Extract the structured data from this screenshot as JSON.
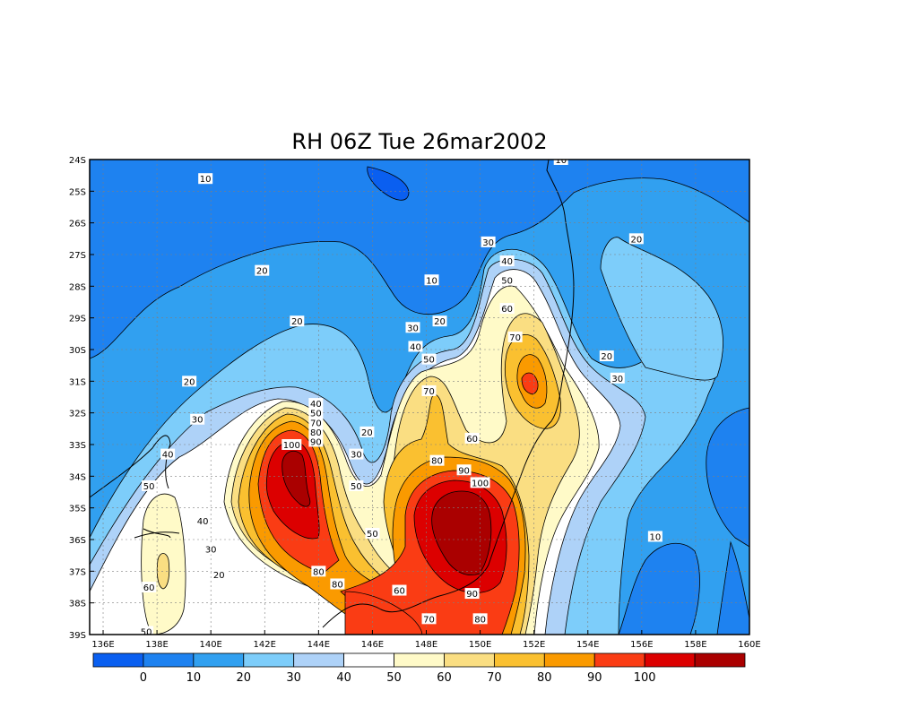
{
  "title": "RH 06Z Tue 26mar2002",
  "map": {
    "lon_range": [
      135.5,
      160
    ],
    "lat_range": [
      -39,
      -24
    ],
    "x_ticks": [
      "136E",
      "138E",
      "140E",
      "142E",
      "144E",
      "146E",
      "148E",
      "150E",
      "152E",
      "154E",
      "156E",
      "158E",
      "160E"
    ],
    "x_tick_values": [
      136,
      138,
      140,
      142,
      144,
      146,
      148,
      150,
      152,
      154,
      156,
      158,
      160
    ],
    "y_ticks": [
      "24S",
      "25S",
      "26S",
      "27S",
      "28S",
      "29S",
      "30S",
      "31S",
      "32S",
      "33S",
      "34S",
      "35S",
      "36S",
      "37S",
      "38S",
      "39S"
    ],
    "y_tick_values": [
      -24,
      -25,
      -26,
      -27,
      -28,
      -29,
      -30,
      -31,
      -32,
      -33,
      -34,
      -35,
      -36,
      -37,
      -38,
      -39
    ],
    "grid": "dotted"
  },
  "colorbar": {
    "colors": [
      "#0a5ff0",
      "#1e82f0",
      "#31a0f0",
      "#7dcdfa",
      "#aed2f8",
      "#ffffff",
      "#fffac8",
      "#fade82",
      "#fac030",
      "#fa9a00",
      "#fa3c14",
      "#dc0000",
      "#aa0000"
    ],
    "labels": [
      "0",
      "10",
      "20",
      "30",
      "40",
      "50",
      "60",
      "70",
      "80",
      "90",
      "100"
    ]
  },
  "contour_labels": [
    {
      "text": "10",
      "lon": 139.8,
      "lat": -24.6
    },
    {
      "text": "10",
      "lon": 153.0,
      "lat": -24.0
    },
    {
      "text": "10",
      "lon": 148.2,
      "lat": -27.8
    },
    {
      "text": "10",
      "lon": 156.5,
      "lat": -35.9
    },
    {
      "text": "20",
      "lon": 141.9,
      "lat": -27.5
    },
    {
      "text": "20",
      "lon": 143.2,
      "lat": -29.1
    },
    {
      "text": "20",
      "lon": 139.2,
      "lat": -31.0
    },
    {
      "text": "20",
      "lon": 145.8,
      "lat": -32.6
    },
    {
      "text": "20",
      "lon": 148.5,
      "lat": -29.1
    },
    {
      "text": "20",
      "lon": 155.8,
      "lat": -26.5
    },
    {
      "text": "20",
      "lon": 154.7,
      "lat": -30.2
    },
    {
      "text": "20",
      "lon": 140.3,
      "lat": -37.1
    },
    {
      "text": "30",
      "lon": 139.5,
      "lat": -32.2
    },
    {
      "text": "30",
      "lon": 145.4,
      "lat": -33.3
    },
    {
      "text": "30",
      "lon": 147.5,
      "lat": -29.3
    },
    {
      "text": "30",
      "lon": 150.3,
      "lat": -26.6
    },
    {
      "text": "30",
      "lon": 155.1,
      "lat": -30.9
    },
    {
      "text": "30",
      "lon": 140.0,
      "lat": -36.3
    },
    {
      "text": "40",
      "lon": 138.4,
      "lat": -33.3
    },
    {
      "text": "40",
      "lon": 143.9,
      "lat": -31.7
    },
    {
      "text": "40",
      "lon": 151.0,
      "lat": -27.2
    },
    {
      "text": "40",
      "lon": 147.6,
      "lat": -29.9
    },
    {
      "text": "40",
      "lon": 139.7,
      "lat": -35.4
    },
    {
      "text": "50",
      "lon": 137.7,
      "lat": -34.3
    },
    {
      "text": "50",
      "lon": 143.9,
      "lat": -32.0
    },
    {
      "text": "50",
      "lon": 145.4,
      "lat": -34.3
    },
    {
      "text": "50",
      "lon": 151.0,
      "lat": -27.8
    },
    {
      "text": "50",
      "lon": 148.1,
      "lat": -30.3
    },
    {
      "text": "50",
      "lon": 146.0,
      "lat": -35.8
    },
    {
      "text": "50",
      "lon": 137.6,
      "lat": -38.9
    },
    {
      "text": "60",
      "lon": 151.0,
      "lat": -28.7
    },
    {
      "text": "60",
      "lon": 149.7,
      "lat": -32.8
    },
    {
      "text": "60",
      "lon": 147.0,
      "lat": -37.6
    },
    {
      "text": "60",
      "lon": 137.7,
      "lat": -37.5
    },
    {
      "text": "70",
      "lon": 143.9,
      "lat": -32.3
    },
    {
      "text": "70",
      "lon": 148.1,
      "lat": -31.3
    },
    {
      "text": "70",
      "lon": 151.3,
      "lat": -29.6
    },
    {
      "text": "70",
      "lon": 148.1,
      "lat": -38.5
    },
    {
      "text": "80",
      "lon": 143.9,
      "lat": -32.6
    },
    {
      "text": "80",
      "lon": 148.4,
      "lat": -33.5
    },
    {
      "text": "80",
      "lon": 144.0,
      "lat": -37.0
    },
    {
      "text": "80",
      "lon": 144.7,
      "lat": -37.4
    },
    {
      "text": "80",
      "lon": 150.0,
      "lat": -38.5
    },
    {
      "text": "90",
      "lon": 143.9,
      "lat": -32.9
    },
    {
      "text": "90",
      "lon": 149.4,
      "lat": -33.8
    },
    {
      "text": "90",
      "lon": 149.7,
      "lat": -37.7
    },
    {
      "text": "100",
      "lon": 143.0,
      "lat": -33.0
    },
    {
      "text": "100",
      "lon": 150.0,
      "lat": -34.2
    }
  ]
}
